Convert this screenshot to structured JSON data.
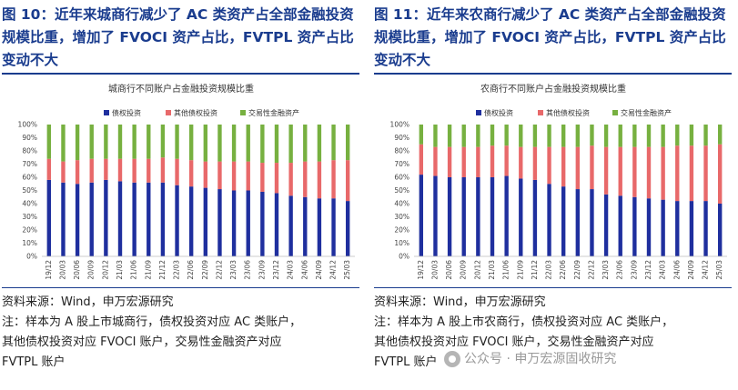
{
  "colors": {
    "series1": "#1f2f9e",
    "series2": "#e8696a",
    "series3": "#77b040",
    "title": "#1a3c8e"
  },
  "panels": [
    {
      "figure_title": "图 10：近年来城商行减少了 AC 类资产占全部金融投资规模比重，增加了 FVOCI 资产占比，FVTPL 资产占比变动不大",
      "source": "资料来源：Wind，申万宏源研究",
      "note_lines": [
        "注：样本为 A 股上市城商行，债权投资对应 AC 类账户，",
        "其他债权投资对应 FVOCI 账户，交易性金融资产对应",
        "FVTPL 账户"
      ]
    },
    {
      "figure_title": "图 11：近年来农商行减少了 AC 类资产占全部金融投资规模比重，增加了 FVOCI 资产占比，FVTPL 资产占比变动不大",
      "source": "资料来源：Wind，申万宏源研究",
      "note_lines": [
        "注：样本为 A 股上市农商行，债权投资对应 AC 类账户，",
        "其他债权投资对应 FVOCI 账户，交易性金融资产对应",
        "FVTPL 账户"
      ]
    }
  ],
  "watermark": "公众号 · 申万宏源固收研究",
  "chart_data": [
    {
      "type": "bar",
      "stacked": true,
      "percent": true,
      "title": "城商行不同账户占金融投资规模比重",
      "categories": [
        "19/12",
        "20/03",
        "20/06",
        "20/09",
        "20/12",
        "21/03",
        "21/06",
        "21/09",
        "21/12",
        "22/03",
        "22/06",
        "22/09",
        "22/12",
        "23/03",
        "23/06",
        "23/09",
        "23/12",
        "24/03",
        "24/06",
        "24/09",
        "24/12",
        "25/03"
      ],
      "yticks": [
        "0%",
        "10%",
        "20%",
        "30%",
        "40%",
        "50%",
        "60%",
        "70%",
        "80%",
        "90%",
        "100%"
      ],
      "ylim": [
        0,
        100
      ],
      "legend_position": "top",
      "series": [
        {
          "name": "债权投资",
          "values": [
            58,
            56,
            55,
            56,
            58,
            57,
            56,
            56,
            56,
            54,
            53,
            52,
            51,
            50,
            50,
            49,
            48,
            46,
            45,
            44,
            44,
            42
          ]
        },
        {
          "name": "其他债权投资",
          "values": [
            16,
            16,
            18,
            18,
            16,
            17,
            18,
            18,
            19,
            20,
            20,
            20,
            21,
            22,
            22,
            22,
            23,
            25,
            27,
            28,
            29,
            31
          ]
        },
        {
          "name": "交易性金融资产",
          "values": [
            26,
            28,
            27,
            26,
            26,
            26,
            26,
            26,
            25,
            26,
            27,
            28,
            28,
            28,
            28,
            29,
            29,
            29,
            28,
            28,
            27,
            27
          ]
        }
      ]
    },
    {
      "type": "bar",
      "stacked": true,
      "percent": true,
      "title": "农商行不同账户占金融投资规模比重",
      "categories": [
        "19/12",
        "20/03",
        "20/06",
        "20/09",
        "20/12",
        "21/03",
        "21/06",
        "21/09",
        "21/12",
        "22/03",
        "22/06",
        "22/09",
        "22/12",
        "23/03",
        "23/06",
        "23/09",
        "23/12",
        "24/03",
        "24/06",
        "24/09",
        "24/12",
        "25/03"
      ],
      "yticks": [
        "0%",
        "10%",
        "20%",
        "30%",
        "40%",
        "50%",
        "60%",
        "70%",
        "80%",
        "90%",
        "100%"
      ],
      "ylim": [
        0,
        100
      ],
      "legend_position": "top",
      "series": [
        {
          "name": "债权投资",
          "values": [
            62,
            61,
            60,
            60,
            60,
            60,
            61,
            59,
            58,
            55,
            53,
            51,
            51,
            47,
            46,
            45,
            44,
            43,
            42,
            42,
            42,
            40
          ]
        },
        {
          "name": "其他债权投资",
          "values": [
            23,
            22,
            23,
            23,
            23,
            24,
            23,
            24,
            25,
            28,
            30,
            32,
            33,
            36,
            37,
            38,
            39,
            40,
            42,
            42,
            42,
            45
          ]
        },
        {
          "name": "交易性金融资产",
          "values": [
            15,
            17,
            17,
            17,
            17,
            16,
            16,
            17,
            17,
            17,
            17,
            17,
            16,
            17,
            17,
            17,
            17,
            17,
            16,
            16,
            16,
            15
          ]
        }
      ]
    }
  ]
}
